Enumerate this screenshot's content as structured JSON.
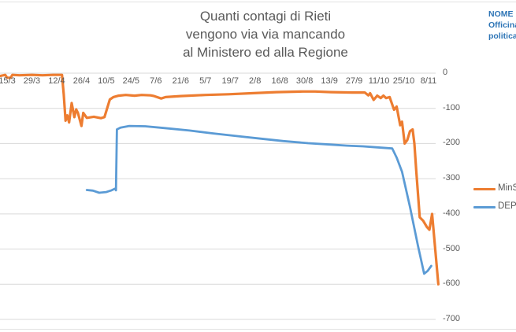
{
  "title": {
    "lines": [
      "Quanti contagi di Rieti",
      "vengono via via mancando",
      "al Ministero ed alla Regione"
    ]
  },
  "logo": {
    "lines": [
      "NOME",
      "Officina",
      "politica"
    ],
    "color": "#2E75B6"
  },
  "legend": {
    "items": [
      {
        "label": "MinS",
        "color": "#ED7D31"
      },
      {
        "label": "DEPL",
        "color": "#5B9BD5"
      }
    ]
  },
  "chart_data": {
    "type": "line",
    "title": "Quanti contagi di Rieti vengono via via mancando al Ministero ed alla Regione",
    "grid": "horizontal",
    "legend_position": "right",
    "axis_text_color": "#595959",
    "grid_color": "#D9D9D9",
    "x_axis": {
      "unit": "date day/month, day 0 = left edge (~11/3)",
      "ticks": [
        {
          "label": "15/3",
          "day": 4
        },
        {
          "label": "29/3",
          "day": 18
        },
        {
          "label": "12/4",
          "day": 32
        },
        {
          "label": "26/4",
          "day": 46
        },
        {
          "label": "10/5",
          "day": 60
        },
        {
          "label": "24/5",
          "day": 74
        },
        {
          "label": "7/6",
          "day": 88
        },
        {
          "label": "21/6",
          "day": 102
        },
        {
          "label": "5/7",
          "day": 116
        },
        {
          "label": "19/7",
          "day": 130
        },
        {
          "label": "2/8",
          "day": 144
        },
        {
          "label": "16/8",
          "day": 158
        },
        {
          "label": "30/8",
          "day": 172
        },
        {
          "label": "13/9",
          "day": 186
        },
        {
          "label": "27/9",
          "day": 200
        },
        {
          "label": "11/10",
          "day": 214
        },
        {
          "label": "25/10",
          "day": 228
        },
        {
          "label": "8/11",
          "day": 242
        }
      ],
      "range_days": [
        0,
        246
      ]
    },
    "y_axis": {
      "range": [
        -700,
        0
      ],
      "ticks": [
        {
          "label": "0",
          "value": 0
        },
        {
          "label": "-100",
          "value": -100
        },
        {
          "label": "-200",
          "value": -200
        },
        {
          "label": "-300",
          "value": -300
        },
        {
          "label": "-400",
          "value": -400
        },
        {
          "label": "-500",
          "value": -500
        },
        {
          "label": "-600",
          "value": -600
        },
        {
          "label": "-700",
          "value": -700
        }
      ]
    },
    "series": [
      {
        "name": "MinS",
        "color": "#ED7D31",
        "points": [
          [
            0,
            -8
          ],
          [
            3,
            -5
          ],
          [
            4,
            -13
          ],
          [
            6,
            -13
          ],
          [
            7,
            -5
          ],
          [
            11,
            -6
          ],
          [
            18,
            -5
          ],
          [
            24,
            -6
          ],
          [
            30,
            -5
          ],
          [
            35,
            -5
          ],
          [
            36,
            -60
          ],
          [
            37,
            -135
          ],
          [
            38,
            -120
          ],
          [
            39,
            -140
          ],
          [
            40.5,
            -85
          ],
          [
            42,
            -125
          ],
          [
            43,
            -103
          ],
          [
            44,
            -113
          ],
          [
            46,
            -150
          ],
          [
            47,
            -113
          ],
          [
            49,
            -127
          ],
          [
            53,
            -124
          ],
          [
            57,
            -128
          ],
          [
            59,
            -125
          ],
          [
            60.5,
            -100
          ],
          [
            62,
            -75
          ],
          [
            64,
            -68
          ],
          [
            67,
            -64
          ],
          [
            71,
            -62
          ],
          [
            76,
            -64
          ],
          [
            80,
            -62
          ],
          [
            85,
            -63
          ],
          [
            87,
            -65
          ],
          [
            91,
            -72
          ],
          [
            93.5,
            -68
          ],
          [
            102,
            -65
          ],
          [
            116,
            -62
          ],
          [
            129,
            -60
          ],
          [
            142,
            -57
          ],
          [
            156,
            -54
          ],
          [
            171,
            -52
          ],
          [
            178,
            -52
          ],
          [
            187,
            -54
          ],
          [
            199,
            -55
          ],
          [
            206,
            -55
          ],
          [
            208,
            -63
          ],
          [
            209,
            -57
          ],
          [
            211,
            -76
          ],
          [
            213,
            -64
          ],
          [
            215,
            -71
          ],
          [
            216.5,
            -64
          ],
          [
            218,
            -71
          ],
          [
            220,
            -68
          ],
          [
            222.5,
            -104
          ],
          [
            224,
            -95
          ],
          [
            226,
            -148
          ],
          [
            227,
            -138
          ],
          [
            228.5,
            -200
          ],
          [
            230,
            -190
          ],
          [
            231.5,
            -165
          ],
          [
            233,
            -160
          ],
          [
            234,
            -200
          ],
          [
            235,
            -275
          ],
          [
            237,
            -410
          ],
          [
            239,
            -420
          ],
          [
            241,
            -437
          ],
          [
            242.5,
            -445
          ],
          [
            244,
            -400
          ],
          [
            247.5,
            -600
          ]
        ]
      },
      {
        "name": "DEPL",
        "color": "#5B9BD5",
        "points": [
          [
            49,
            -332
          ],
          [
            52.5,
            -334
          ],
          [
            56,
            -340
          ],
          [
            60,
            -338
          ],
          [
            63,
            -333
          ],
          [
            65,
            -328
          ],
          [
            65.5,
            -333
          ],
          [
            66,
            -160
          ],
          [
            68,
            -155
          ],
          [
            73,
            -150
          ],
          [
            82,
            -151
          ],
          [
            93,
            -156
          ],
          [
            107,
            -163
          ],
          [
            120,
            -171
          ],
          [
            134,
            -179
          ],
          [
            147,
            -186
          ],
          [
            160,
            -193
          ],
          [
            174,
            -199
          ],
          [
            187,
            -203
          ],
          [
            196,
            -206
          ],
          [
            205,
            -208
          ],
          [
            213,
            -211
          ],
          [
            221.5,
            -214
          ],
          [
            224,
            -240
          ],
          [
            227,
            -280
          ],
          [
            231.5,
            -380
          ],
          [
            236,
            -490
          ],
          [
            239.5,
            -570
          ],
          [
            241.5,
            -562
          ],
          [
            243.5,
            -548
          ]
        ]
      }
    ]
  }
}
